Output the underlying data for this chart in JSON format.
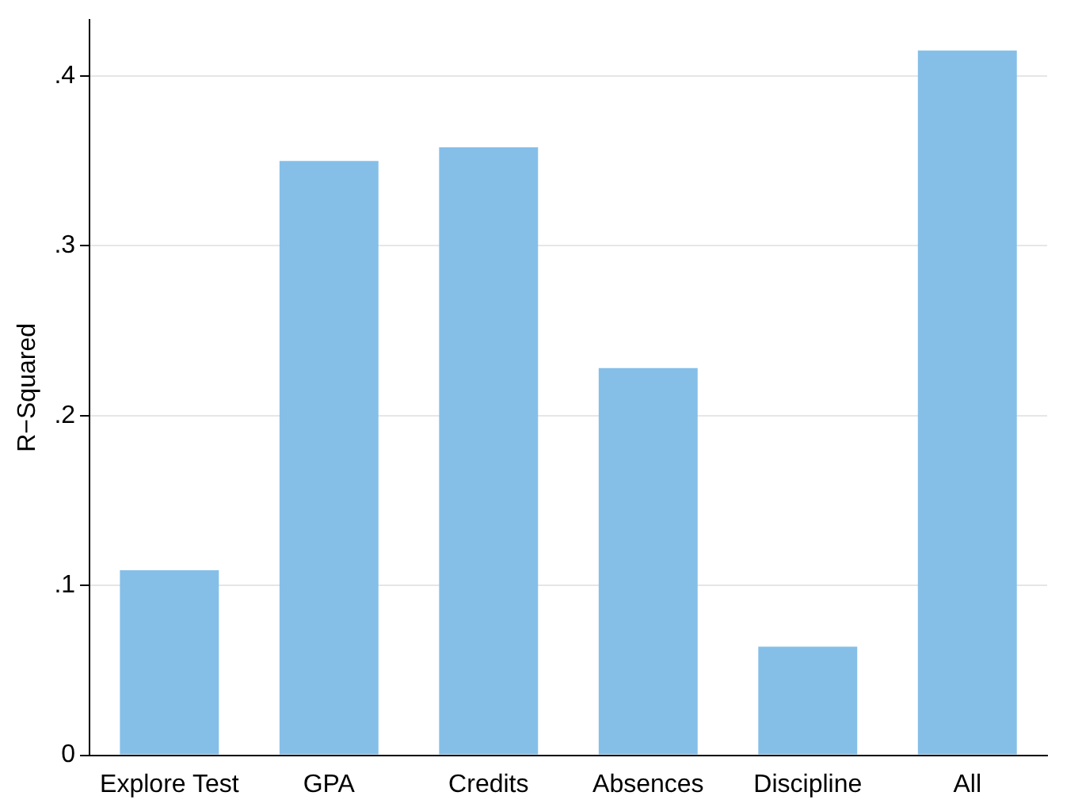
{
  "chart_data": {
    "type": "bar",
    "ylabel": "R−Squared",
    "categories": [
      "Explore Test",
      "GPA",
      "Credits",
      "Absences",
      "Discipline",
      "All"
    ],
    "values": [
      0.109,
      0.35,
      0.358,
      0.228,
      0.064,
      0.415
    ],
    "color": "#85bfe8",
    "ylim": [
      0,
      0.433
    ],
    "yticks": [
      0,
      {
        "value": 0.1,
        "label": ".1"
      },
      {
        "value": 0.2,
        "label": ".2"
      },
      {
        "value": 0.3,
        "label": ".3"
      },
      {
        "value": 0.4,
        "label": ".4"
      }
    ],
    "grid": "y",
    "legend": false
  }
}
